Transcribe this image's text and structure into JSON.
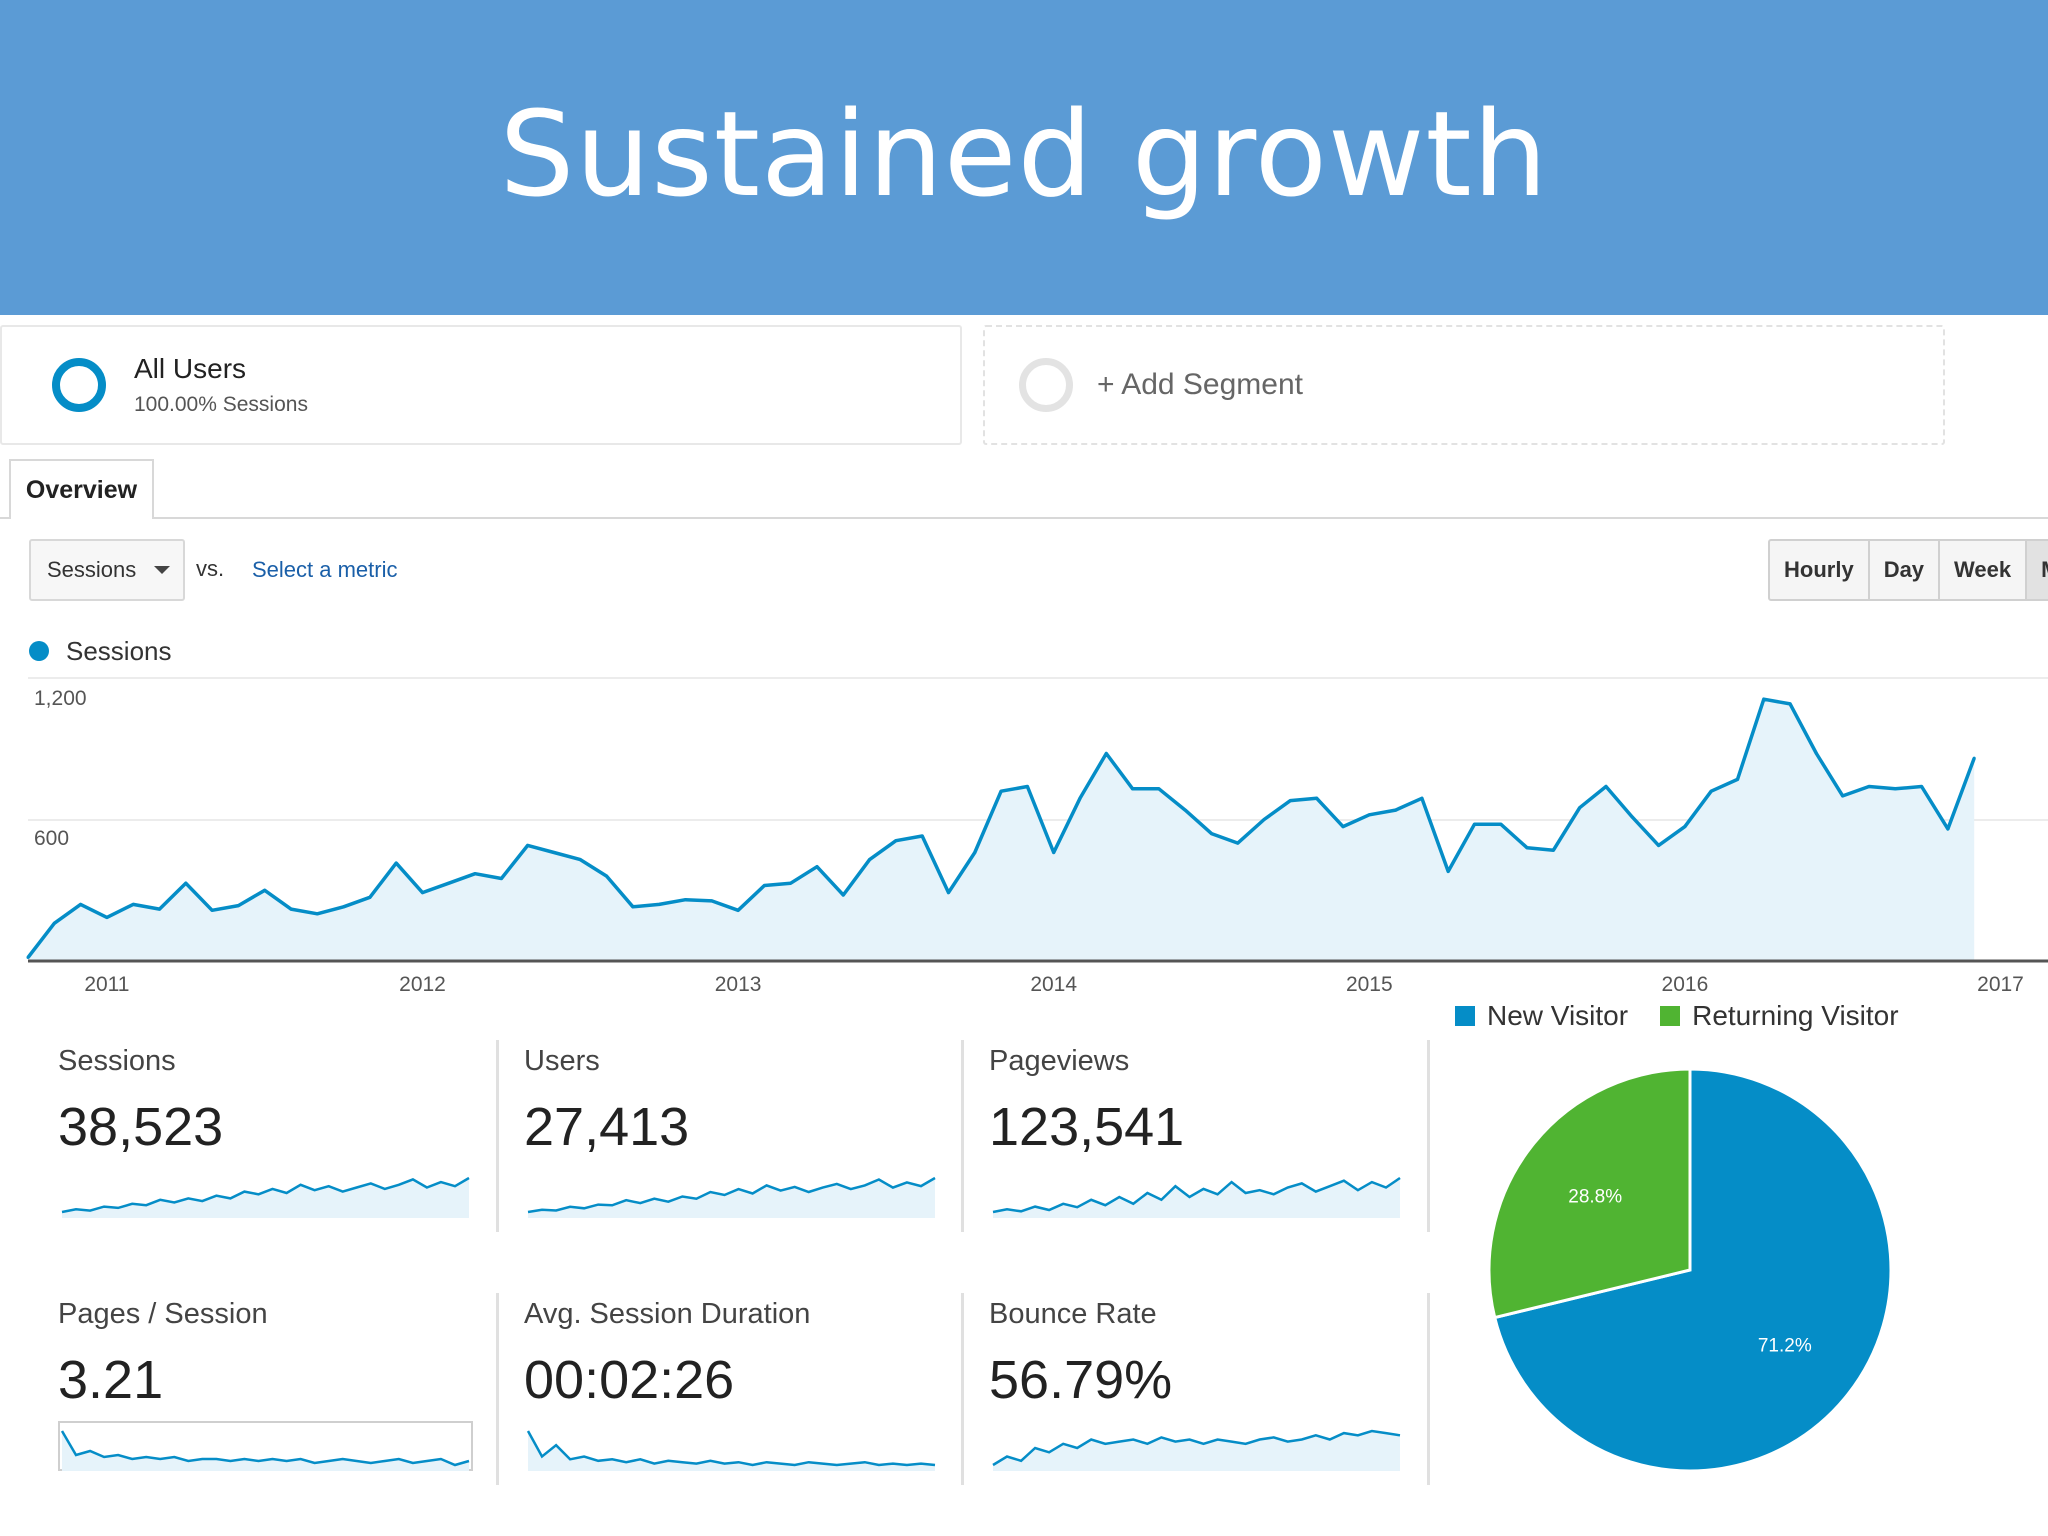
{
  "slide": {
    "title": "Sustained growth"
  },
  "segments": {
    "all_users": {
      "name": "All Users",
      "sub": "100.00% Sessions"
    },
    "add": {
      "label": "+ Add Segment"
    }
  },
  "tabs": {
    "overview": "Overview"
  },
  "metric_selector": {
    "selected": "Sessions",
    "vs": "vs.",
    "select_metric": "Select a metric"
  },
  "granularity": {
    "buttons": [
      "Hourly",
      "Day",
      "Week",
      "M"
    ],
    "active_index": 3
  },
  "colors": {
    "banner": "#5b9bd5",
    "accent": "#058dc7",
    "returning": "#50b432",
    "area_fill": "#e6f3fa"
  },
  "chart_data": [
    {
      "type": "area",
      "series": [
        {
          "name": "Sessions",
          "x": [
            "2010-10",
            "2010-11",
            "2010-12",
            "2011-01",
            "2011-02",
            "2011-03",
            "2011-04",
            "2011-05",
            "2011-06",
            "2011-07",
            "2011-08",
            "2011-09",
            "2011-10",
            "2011-11",
            "2011-12",
            "2012-01",
            "2012-02",
            "2012-03",
            "2012-04",
            "2012-05",
            "2012-06",
            "2012-07",
            "2012-08",
            "2012-09",
            "2012-10",
            "2012-11",
            "2012-12",
            "2013-01",
            "2013-02",
            "2013-03",
            "2013-04",
            "2013-05",
            "2013-06",
            "2013-07",
            "2013-08",
            "2013-09",
            "2013-10",
            "2013-11",
            "2013-12",
            "2014-01",
            "2014-02",
            "2014-03",
            "2014-04",
            "2014-05",
            "2014-06",
            "2014-07",
            "2014-08",
            "2014-09",
            "2014-10",
            "2014-11",
            "2014-12",
            "2015-01",
            "2015-02",
            "2015-03",
            "2015-04",
            "2015-05",
            "2015-06",
            "2015-07",
            "2015-08",
            "2015-09",
            "2015-10",
            "2015-11",
            "2015-12",
            "2016-01",
            "2016-02",
            "2016-03",
            "2016-04",
            "2016-05",
            "2016-06",
            "2016-07",
            "2016-08",
            "2016-09",
            "2016-10",
            "2016-11",
            "2016-12"
          ],
          "values": [
            15,
            160,
            240,
            185,
            240,
            220,
            330,
            215,
            235,
            300,
            220,
            200,
            230,
            270,
            415,
            290,
            330,
            370,
            350,
            490,
            460,
            430,
            360,
            230,
            240,
            260,
            255,
            215,
            320,
            330,
            400,
            280,
            430,
            510,
            530,
            290,
            460,
            720,
            740,
            460,
            690,
            880,
            730,
            730,
            640,
            540,
            500,
            600,
            680,
            690,
            570,
            620,
            640,
            690,
            380,
            580,
            580,
            480,
            470,
            650,
            740,
            610,
            490,
            570,
            720,
            770,
            1110,
            1090,
            880,
            700,
            740,
            730,
            740,
            560,
            860
          ]
        }
      ],
      "x_tick_labels": [
        "2011",
        "2012",
        "2013",
        "2014",
        "2015",
        "2016",
        "2017"
      ],
      "y_tick_labels": [
        "1,200",
        "600"
      ],
      "ylim": [
        0,
        1200
      ],
      "grid": true
    },
    {
      "type": "pie",
      "categories": [
        "New Visitor",
        "Returning Visitor"
      ],
      "values": [
        71.2,
        28.8
      ],
      "data_labels": [
        "71.2%",
        "28.8%"
      ],
      "legend_position": "top"
    }
  ],
  "kpis": [
    {
      "label": "Sessions",
      "value": "38,523",
      "spark": [
        10,
        14,
        12,
        18,
        16,
        22,
        20,
        28,
        24,
        30,
        26,
        34,
        30,
        40,
        36,
        44,
        38,
        50,
        42,
        48,
        40,
        46,
        52,
        44,
        50,
        58,
        46,
        54,
        48,
        60
      ]
    },
    {
      "label": "Users",
      "value": "27,413",
      "spark": [
        10,
        13,
        12,
        17,
        15,
        20,
        19,
        26,
        22,
        28,
        24,
        31,
        28,
        37,
        33,
        41,
        35,
        46,
        39,
        44,
        37,
        43,
        48,
        41,
        46,
        54,
        43,
        50,
        45,
        56
      ]
    },
    {
      "label": "Pageviews",
      "value": "123,541",
      "spark": [
        12,
        16,
        13,
        20,
        15,
        24,
        19,
        30,
        22,
        34,
        24,
        40,
        30,
        50,
        34,
        46,
        38,
        56,
        40,
        44,
        38,
        48,
        54,
        42,
        50,
        58,
        44,
        56,
        48,
        62
      ]
    },
    {
      "label": "Pages / Session",
      "value": "3.21",
      "spark": [
        60,
        48,
        50,
        47,
        48,
        46,
        47,
        46,
        47,
        45,
        46,
        46,
        45,
        46,
        45,
        46,
        45,
        46,
        44,
        45,
        46,
        45,
        44,
        45,
        46,
        44,
        45,
        46,
        43,
        45
      ]
    },
    {
      "label": "Avg. Session Duration",
      "value": "00:02:26",
      "spark": [
        60,
        42,
        50,
        40,
        42,
        39,
        40,
        38,
        40,
        37,
        39,
        38,
        37,
        39,
        37,
        38,
        36,
        38,
        37,
        36,
        38,
        37,
        36,
        37,
        38,
        36,
        37,
        36,
        37,
        36
      ]
    },
    {
      "label": "Bounce Rate",
      "value": "56.79%",
      "spark": [
        40,
        44,
        42,
        48,
        46,
        50,
        48,
        52,
        50,
        51,
        52,
        50,
        53,
        51,
        52,
        50,
        52,
        51,
        50,
        52,
        53,
        51,
        52,
        54,
        52,
        55,
        54,
        56,
        55,
        54
      ]
    }
  ]
}
